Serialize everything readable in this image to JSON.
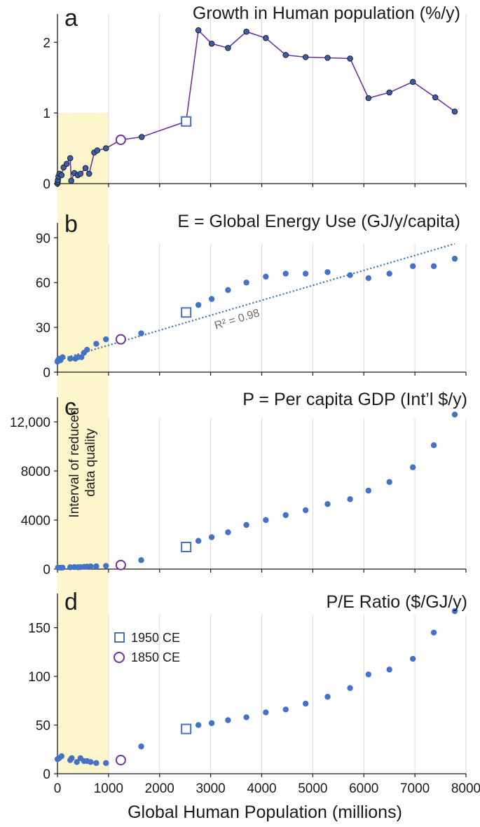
{
  "colors": {
    "dot": "#4472c4",
    "line_a": "#7030a0",
    "dot_a": "#3a5ea8",
    "dot_a_edge": "#1f1f1f",
    "marker_1950": "#4472c4",
    "marker_1850": "#7030a0",
    "shade": "#fdf5cc",
    "grid": "#d9d9d9",
    "trend": "#3a6fb8"
  },
  "shade_label_lines": [
    "Interval of reduced",
    "data quality"
  ],
  "shade_range": [
    0,
    1000
  ],
  "xlabel": "Global Human Population (millions)",
  "x_ticks": [
    0,
    1000,
    2000,
    3000,
    4000,
    5000,
    6000,
    7000,
    8000
  ],
  "legend": [
    {
      "label": "1950 CE",
      "marker": "square"
    },
    {
      "label": "1850 CE",
      "marker": "circle"
    }
  ],
  "chart_data": [
    {
      "panel": "a",
      "type": "line",
      "title": "Growth in Human population (%/y)",
      "xlim": [
        0,
        8000
      ],
      "ylim": [
        0,
        2.4
      ],
      "y_ticks": [
        {
          "v": 0,
          "label": "0"
        },
        {
          "v": 1,
          "label": "1"
        },
        {
          "v": 2,
          "label": "2"
        }
      ],
      "shade_ymax": 1.0,
      "x": [
        0,
        5,
        10,
        20,
        40,
        80,
        120,
        180,
        250,
        270,
        330,
        400,
        450,
        550,
        620,
        720,
        780,
        950,
        1240,
        1650,
        2520,
        2760,
        3020,
        3340,
        3700,
        4080,
        4470,
        4860,
        5290,
        5730,
        6090,
        6500,
        6960,
        7400,
        7780
      ],
      "y": [
        0,
        0.02,
        0.05,
        0.1,
        0.14,
        0.12,
        0.23,
        0.28,
        0.36,
        0.04,
        0.15,
        0.12,
        0.14,
        0.22,
        0.14,
        0.44,
        0.47,
        0.5,
        0.62,
        0.66,
        0.88,
        2.17,
        1.98,
        1.92,
        2.15,
        2.06,
        1.82,
        1.79,
        1.78,
        1.77,
        1.21,
        1.29,
        1.44,
        1.22,
        1.02
      ],
      "marker_1850_index": 18,
      "marker_1950_index": 20
    },
    {
      "panel": "b",
      "type": "scatter",
      "title": "E = Global Energy Use (GJ/y/capita)",
      "xlim": [
        0,
        8000
      ],
      "ylim": [
        0,
        100
      ],
      "y_ticks": [
        {
          "v": 0,
          "label": "0"
        },
        {
          "v": 30,
          "label": "30"
        },
        {
          "v": 60,
          "label": "60"
        },
        {
          "v": 90,
          "label": "90"
        }
      ],
      "x": [
        0,
        10,
        30,
        60,
        100,
        250,
        350,
        400,
        470,
        520,
        580,
        760,
        950,
        1640,
        2760,
        3020,
        3340,
        3700,
        4080,
        4470,
        4860,
        5290,
        5730,
        6090,
        6500,
        6960,
        7370,
        7780
      ],
      "y": [
        7,
        8,
        9,
        8,
        10,
        9,
        9,
        10,
        10,
        13,
        15,
        19,
        22,
        26,
        45,
        49,
        55,
        60,
        64,
        66,
        66,
        67,
        65,
        63,
        66,
        71,
        71,
        76
      ],
      "marker_1850": {
        "x": 1240,
        "y": 22
      },
      "marker_1950": {
        "x": 2520,
        "y": 40
      },
      "trendline": {
        "x0": 0,
        "y0": 8,
        "x1": 7780,
        "y1": 86
      },
      "trend_annotation": "R² = 0.98"
    },
    {
      "panel": "c",
      "type": "scatter",
      "title": "P = Per capita GDP (Int’l $/y)",
      "xlim": [
        0,
        8000
      ],
      "ylim": [
        0,
        14000
      ],
      "y_ticks": [
        {
          "v": 0,
          "label": "0"
        },
        {
          "v": 4000,
          "label": "4000"
        },
        {
          "v": 8000,
          "label": "8000"
        },
        {
          "v": 12000,
          "label": "12,000"
        }
      ],
      "x": [
        10,
        60,
        100,
        250,
        330,
        400,
        450,
        520,
        580,
        650,
        760,
        950,
        1640,
        2760,
        3020,
        3340,
        3700,
        4080,
        4470,
        4860,
        5290,
        5730,
        6090,
        6500,
        6960,
        7370,
        7780
      ],
      "y": [
        120,
        110,
        120,
        150,
        160,
        150,
        160,
        180,
        200,
        220,
        230,
        260,
        730,
        2300,
        2600,
        3000,
        3600,
        4000,
        4400,
        4800,
        5300,
        5700,
        6400,
        7100,
        8300,
        10100,
        12600
      ],
      "marker_1850": {
        "x": 1240,
        "y": 330
      },
      "marker_1950": {
        "x": 2520,
        "y": 1800
      }
    },
    {
      "panel": "d",
      "type": "scatter",
      "title": "P/E Ratio ($/GJ/y)",
      "xlim": [
        0,
        8000
      ],
      "ylim": [
        0,
        185
      ],
      "y_ticks": [
        {
          "v": 0,
          "label": "0"
        },
        {
          "v": 50,
          "label": "50"
        },
        {
          "v": 100,
          "label": "100"
        },
        {
          "v": 150,
          "label": "150"
        }
      ],
      "x": [
        0,
        30,
        80,
        250,
        280,
        380,
        450,
        520,
        580,
        650,
        760,
        950,
        1640,
        2760,
        3020,
        3340,
        3700,
        4080,
        4470,
        4860,
        5290,
        5730,
        6090,
        6500,
        6960,
        7370,
        7780
      ],
      "y": [
        15,
        16,
        18,
        14,
        16,
        12,
        16,
        13,
        13,
        12,
        11,
        11,
        28,
        50,
        52,
        55,
        58,
        63,
        66,
        72,
        79,
        88,
        102,
        107,
        118,
        145,
        167
      ],
      "marker_1850": {
        "x": 1240,
        "y": 14
      },
      "marker_1950": {
        "x": 2520,
        "y": 46
      }
    }
  ]
}
